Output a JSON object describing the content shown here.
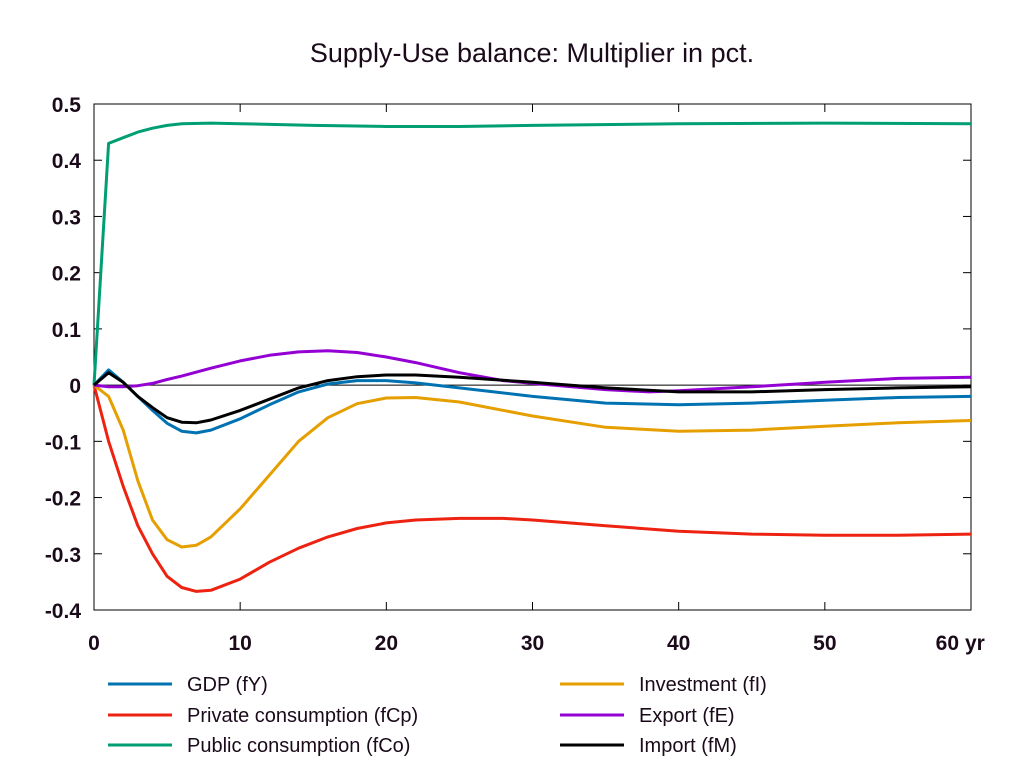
{
  "chart_data": {
    "type": "line",
    "title": "Supply-Use balance: Multiplier in pct.",
    "xlabel": "",
    "ylabel": "",
    "x_unit_label": "yr",
    "xlim": [
      0,
      60
    ],
    "ylim": [
      -0.4,
      0.5
    ],
    "xticks": [
      0,
      10,
      20,
      30,
      40,
      50,
      60
    ],
    "yticks": [
      -0.4,
      -0.3,
      -0.2,
      -0.1,
      0,
      0.1,
      0.2,
      0.3,
      0.4,
      0.5
    ],
    "ytick_labels": [
      "-0.4",
      "-0.3",
      "-0.2",
      "-0.1",
      "0",
      "0.1",
      "0.2",
      "0.3",
      "0.4",
      "0.5"
    ],
    "grid": false,
    "legend_placement": "bottom",
    "series": [
      {
        "name": "GDP (fY)",
        "color": "#0072b2",
        "points": [
          [
            0,
            0
          ],
          [
            1,
            0.027
          ],
          [
            2,
            0.005
          ],
          [
            3,
            -0.02
          ],
          [
            4,
            -0.045
          ],
          [
            5,
            -0.068
          ],
          [
            6,
            -0.082
          ],
          [
            7,
            -0.085
          ],
          [
            8,
            -0.08
          ],
          [
            10,
            -0.06
          ],
          [
            12,
            -0.035
          ],
          [
            14,
            -0.012
          ],
          [
            16,
            0.002
          ],
          [
            18,
            0.008
          ],
          [
            20,
            0.008
          ],
          [
            22,
            0.004
          ],
          [
            25,
            -0.005
          ],
          [
            30,
            -0.02
          ],
          [
            35,
            -0.032
          ],
          [
            40,
            -0.035
          ],
          [
            45,
            -0.032
          ],
          [
            50,
            -0.027
          ],
          [
            55,
            -0.022
          ],
          [
            60,
            -0.02
          ]
        ]
      },
      {
        "name": "Private consumption (fCp)",
        "color": "#ee2211",
        "points": [
          [
            0,
            0
          ],
          [
            1,
            -0.1
          ],
          [
            2,
            -0.18
          ],
          [
            3,
            -0.25
          ],
          [
            4,
            -0.3
          ],
          [
            5,
            -0.34
          ],
          [
            6,
            -0.36
          ],
          [
            7,
            -0.367
          ],
          [
            8,
            -0.365
          ],
          [
            10,
            -0.345
          ],
          [
            12,
            -0.315
          ],
          [
            14,
            -0.29
          ],
          [
            16,
            -0.27
          ],
          [
            18,
            -0.255
          ],
          [
            20,
            -0.245
          ],
          [
            22,
            -0.24
          ],
          [
            25,
            -0.237
          ],
          [
            28,
            -0.237
          ],
          [
            30,
            -0.24
          ],
          [
            35,
            -0.25
          ],
          [
            40,
            -0.26
          ],
          [
            45,
            -0.265
          ],
          [
            50,
            -0.267
          ],
          [
            55,
            -0.267
          ],
          [
            60,
            -0.265
          ]
        ]
      },
      {
        "name": "Public consumption (fCo)",
        "color": "#009e73",
        "points": [
          [
            0,
            0
          ],
          [
            1,
            0.43
          ],
          [
            2,
            0.44
          ],
          [
            3,
            0.45
          ],
          [
            4,
            0.457
          ],
          [
            5,
            0.462
          ],
          [
            6,
            0.465
          ],
          [
            8,
            0.466
          ],
          [
            10,
            0.465
          ],
          [
            15,
            0.462
          ],
          [
            20,
            0.46
          ],
          [
            25,
            0.46
          ],
          [
            30,
            0.462
          ],
          [
            40,
            0.465
          ],
          [
            50,
            0.466
          ],
          [
            60,
            0.465
          ]
        ]
      },
      {
        "name": "Investment (fI)",
        "color": "#e69f00",
        "points": [
          [
            0,
            0
          ],
          [
            1,
            -0.02
          ],
          [
            2,
            -0.08
          ],
          [
            3,
            -0.17
          ],
          [
            4,
            -0.24
          ],
          [
            5,
            -0.275
          ],
          [
            6,
            -0.288
          ],
          [
            7,
            -0.285
          ],
          [
            8,
            -0.27
          ],
          [
            10,
            -0.22
          ],
          [
            12,
            -0.16
          ],
          [
            14,
            -0.1
          ],
          [
            16,
            -0.058
          ],
          [
            18,
            -0.033
          ],
          [
            20,
            -0.023
          ],
          [
            22,
            -0.022
          ],
          [
            25,
            -0.03
          ],
          [
            30,
            -0.055
          ],
          [
            35,
            -0.075
          ],
          [
            40,
            -0.082
          ],
          [
            45,
            -0.08
          ],
          [
            50,
            -0.073
          ],
          [
            55,
            -0.067
          ],
          [
            60,
            -0.063
          ]
        ]
      },
      {
        "name": "Export (fE)",
        "color": "#9400d3",
        "points": [
          [
            0,
            0
          ],
          [
            1,
            -0.003
          ],
          [
            2,
            -0.003
          ],
          [
            3,
            -0.001
          ],
          [
            4,
            0.003
          ],
          [
            5,
            0.01
          ],
          [
            6,
            0.016
          ],
          [
            8,
            0.03
          ],
          [
            10,
            0.043
          ],
          [
            12,
            0.053
          ],
          [
            14,
            0.059
          ],
          [
            16,
            0.061
          ],
          [
            18,
            0.058
          ],
          [
            20,
            0.05
          ],
          [
            22,
            0.04
          ],
          [
            25,
            0.022
          ],
          [
            28,
            0.008
          ],
          [
            30,
            0.003
          ],
          [
            35,
            -0.008
          ],
          [
            38,
            -0.012
          ],
          [
            40,
            -0.01
          ],
          [
            45,
            -0.003
          ],
          [
            50,
            0.005
          ],
          [
            55,
            0.012
          ],
          [
            60,
            0.014
          ]
        ]
      },
      {
        "name": "Import (fM)",
        "color": "#000000",
        "points": [
          [
            0,
            0
          ],
          [
            1,
            0.022
          ],
          [
            2,
            0.005
          ],
          [
            3,
            -0.02
          ],
          [
            4,
            -0.04
          ],
          [
            5,
            -0.058
          ],
          [
            6,
            -0.066
          ],
          [
            7,
            -0.067
          ],
          [
            8,
            -0.062
          ],
          [
            10,
            -0.045
          ],
          [
            12,
            -0.025
          ],
          [
            14,
            -0.005
          ],
          [
            16,
            0.008
          ],
          [
            18,
            0.015
          ],
          [
            20,
            0.018
          ],
          [
            22,
            0.018
          ],
          [
            25,
            0.014
          ],
          [
            30,
            0.005
          ],
          [
            35,
            -0.005
          ],
          [
            40,
            -0.012
          ],
          [
            45,
            -0.012
          ],
          [
            50,
            -0.008
          ],
          [
            55,
            -0.005
          ],
          [
            60,
            -0.003
          ]
        ]
      }
    ]
  }
}
